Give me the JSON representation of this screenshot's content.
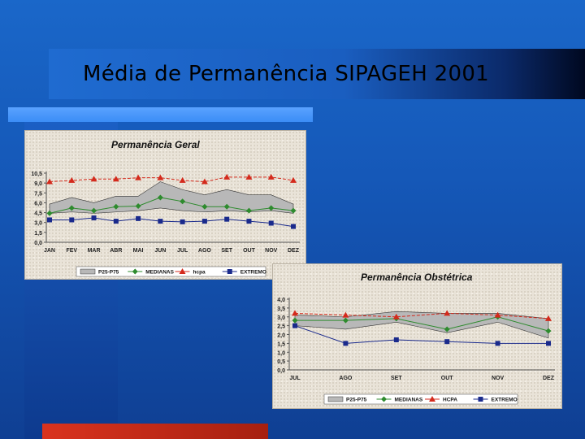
{
  "slide": {
    "title": "Média de Permanência SIPAGEH 2001",
    "colors": {
      "background": "#1558b8",
      "title_bar_end": "#000820",
      "accent": "#3b8df6",
      "bottom_bar": "#c82a17",
      "panel": "#e9e3d8"
    }
  },
  "chart_data": [
    {
      "type": "line",
      "title": "Permanência Geral",
      "categories": [
        "JAN",
        "FEV",
        "MAR",
        "ABR",
        "MAI",
        "JUN",
        "JUL",
        "AGO",
        "SET",
        "OUT",
        "NOV",
        "DEZ"
      ],
      "ylim": [
        0,
        10.5
      ],
      "yticks": [
        "0,0",
        "1,5",
        "3,0",
        "4,5",
        "6,0",
        "7,5",
        "9,0",
        "10,5"
      ],
      "band": {
        "name": "P25-P75",
        "lower": [
          4.4,
          4.6,
          4.4,
          4.6,
          4.8,
          5.2,
          4.8,
          4.6,
          4.8,
          4.6,
          4.8,
          4.4
        ],
        "upper": [
          5.8,
          6.8,
          6.0,
          7.0,
          7.0,
          9.2,
          8.0,
          7.2,
          8.0,
          7.2,
          7.2,
          5.8
        ],
        "color": "#b8b8b8"
      },
      "series": [
        {
          "name": "MEDIANAS",
          "values": [
            4.4,
            5.2,
            4.8,
            5.4,
            5.5,
            6.8,
            6.2,
            5.4,
            5.4,
            4.8,
            5.2,
            4.8
          ],
          "color": "#2e8b2e",
          "marker": "diamond"
        },
        {
          "name": "hcpa",
          "values": [
            9.2,
            9.4,
            9.6,
            9.6,
            9.8,
            9.8,
            9.4,
            9.2,
            9.9,
            9.9,
            9.9,
            9.4
          ],
          "color": "#d42a1c",
          "marker": "triangle"
        },
        {
          "name": "EXTREMO",
          "values": [
            3.4,
            3.4,
            3.7,
            3.2,
            3.6,
            3.2,
            3.1,
            3.2,
            3.5,
            3.2,
            2.9,
            2.4
          ],
          "color": "#1a2a8c",
          "marker": "square"
        }
      ],
      "legend": [
        "P25-P75",
        "MEDIANAS",
        "hcpa",
        "EXTREMO"
      ]
    },
    {
      "type": "line",
      "title": "Permanência Obstétrica",
      "categories": [
        "JUL",
        "AGO",
        "SET",
        "OUT",
        "NOV",
        "DEZ"
      ],
      "ylim": [
        0,
        4.0
      ],
      "yticks": [
        "0,0",
        "0,5",
        "1,0",
        "1,5",
        "2,0",
        "2,5",
        "3,0",
        "3,5",
        "4,0"
      ],
      "band": {
        "name": "P25-P75",
        "lower": [
          2.5,
          2.3,
          2.7,
          2.1,
          2.7,
          1.8
        ],
        "upper": [
          3.1,
          3.0,
          3.3,
          3.2,
          3.2,
          2.9
        ],
        "color": "#b8b8b8"
      },
      "series": [
        {
          "name": "MEDIANAS",
          "values": [
            2.8,
            2.8,
            2.9,
            2.3,
            3.0,
            2.2
          ],
          "color": "#2e8b2e",
          "marker": "diamond"
        },
        {
          "name": "HCPA",
          "values": [
            3.2,
            3.1,
            3.0,
            3.2,
            3.1,
            2.9
          ],
          "color": "#d42a1c",
          "marker": "triangle"
        },
        {
          "name": "EXTREMO",
          "values": [
            2.5,
            1.5,
            1.7,
            1.6,
            1.5,
            1.5
          ],
          "color": "#1a2a8c",
          "marker": "square"
        }
      ],
      "legend": [
        "P25-P75",
        "MEDIANAS",
        "HCPA",
        "EXTREMO"
      ]
    }
  ]
}
